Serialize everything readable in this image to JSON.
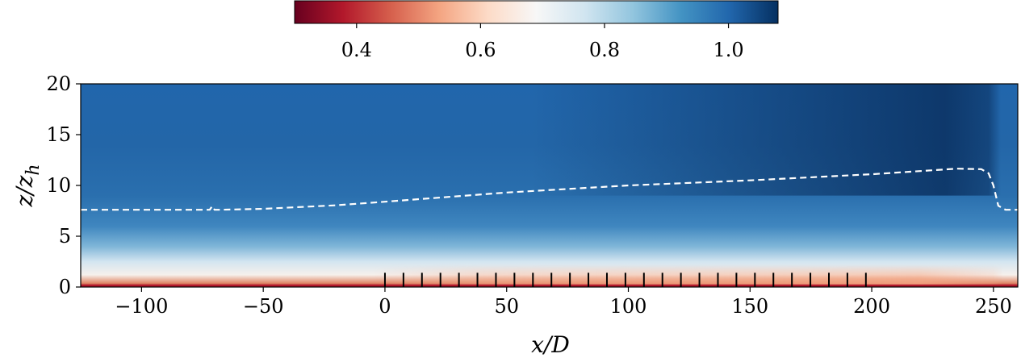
{
  "chart_data": {
    "type": "heatmap",
    "title": "",
    "xlabel": "x/D",
    "ylabel": "z/z",
    "ylabel_sub": "h",
    "xlim": [
      -125,
      260
    ],
    "ylim": [
      0,
      20
    ],
    "xticks": [
      -100,
      -50,
      0,
      50,
      100,
      150,
      200,
      250
    ],
    "xtick_labels": [
      "−100",
      "−50",
      "0",
      "50",
      "100",
      "150",
      "200",
      "250"
    ],
    "yticks": [
      0,
      5,
      10,
      15,
      20
    ],
    "ytick_labels": [
      "0",
      "5",
      "10",
      "15",
      "20"
    ],
    "colorbar": {
      "range": [
        0.3,
        1.08
      ],
      "ticks": [
        0.4,
        0.6,
        0.8,
        1.0
      ],
      "tick_labels": [
        "0.4",
        "0.6",
        "0.8",
        "1.0"
      ],
      "colormap": "RdBu",
      "stops": [
        "#67001f",
        "#b2182b",
        "#d6604d",
        "#f4a582",
        "#fddbc7",
        "#f7f7f7",
        "#d1e5f0",
        "#92c5de",
        "#4393c3",
        "#2166ac",
        "#053061"
      ]
    },
    "field_rows": [
      {
        "z": 0.0,
        "color": "#b2182b"
      },
      {
        "z": 0.4,
        "color": "#e08a6a"
      },
      {
        "z": 1.2,
        "color": "#f6f0ec"
      },
      {
        "z": 2.5,
        "color": "#d3e5f0"
      },
      {
        "z": 4.0,
        "color": "#7fb6d8"
      },
      {
        "z": 6.0,
        "color": "#3f86bf"
      },
      {
        "z": 9.0,
        "color": "#2a6fae"
      },
      {
        "z": 14.0,
        "color": "#2366a8"
      },
      {
        "z": 20.0,
        "color": "#2166ac"
      }
    ],
    "downstream_darkening": {
      "x_start": 60,
      "x_peak": 230,
      "x_end": 248,
      "peak_color": "#0a3060"
    },
    "wake_region": {
      "x_start": 0,
      "x_peak": 220,
      "x_end": 250,
      "z_top": 2.2,
      "color": "#f4a582"
    },
    "boundary_layer_line": {
      "style": "dashed",
      "color": "#ffffff",
      "x": [
        -125,
        -75,
        -72,
        -71,
        -70,
        -68,
        -50,
        -20,
        0,
        50,
        100,
        150,
        200,
        235,
        245,
        248,
        250,
        252,
        255,
        260
      ],
      "z": [
        7.6,
        7.6,
        7.6,
        7.95,
        7.6,
        7.6,
        7.7,
        8.05,
        8.4,
        9.3,
        10.0,
        10.5,
        11.1,
        11.65,
        11.6,
        11.2,
        10.0,
        8.0,
        7.6,
        7.6
      ]
    },
    "turbines": {
      "x": [
        0,
        7.6,
        15.2,
        22.8,
        30.4,
        38.0,
        45.6,
        53.2,
        60.8,
        68.4,
        76.0,
        83.6,
        91.2,
        98.8,
        106.4,
        114.0,
        121.6,
        129.2,
        136.8,
        144.4,
        152.0,
        159.6,
        167.2,
        174.8,
        182.4,
        190.0,
        197.6
      ],
      "z_bottom": 0,
      "z_top": 1.4,
      "color": "#000000"
    }
  }
}
